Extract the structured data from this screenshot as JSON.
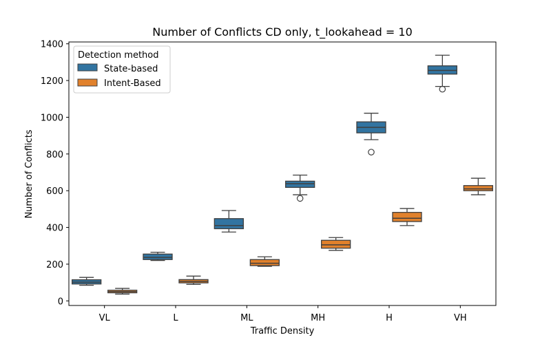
{
  "chart_data": {
    "type": "box",
    "title": "Number of Conflicts CD only, t_lookahead = 10",
    "xlabel": "Traffic Density",
    "ylabel": "Number of Conflicts",
    "categories": [
      "VL",
      "L",
      "ML",
      "MH",
      "H",
      "VH"
    ],
    "ylim": [
      -25,
      1410
    ],
    "yticks": [
      0,
      200,
      400,
      600,
      800,
      1000,
      1200,
      1400
    ],
    "legend": {
      "title": "Detection method",
      "placement": "top-left"
    },
    "series": [
      {
        "name": "State-based",
        "color": "#3274a1",
        "boxes": [
          {
            "whisker_low": 85,
            "q1": 92,
            "median": 102,
            "q3": 115,
            "whisker_high": 128,
            "outliers": []
          },
          {
            "whisker_low": 220,
            "q1": 225,
            "median": 237,
            "q3": 255,
            "whisker_high": 265,
            "outliers": []
          },
          {
            "whisker_low": 375,
            "q1": 393,
            "median": 410,
            "q3": 448,
            "whisker_high": 492,
            "outliers": []
          },
          {
            "whisker_low": 578,
            "q1": 618,
            "median": 638,
            "q3": 652,
            "whisker_high": 685,
            "outliers": [
              558
            ]
          },
          {
            "whisker_low": 878,
            "q1": 915,
            "median": 945,
            "q3": 975,
            "whisker_high": 1022,
            "outliers": [
              810
            ]
          },
          {
            "whisker_low": 1168,
            "q1": 1235,
            "median": 1255,
            "q3": 1280,
            "whisker_high": 1338,
            "outliers": [
              1153
            ]
          }
        ]
      },
      {
        "name": "Intent-Based",
        "color": "#e1812c",
        "boxes": [
          {
            "whisker_low": 37,
            "q1": 44,
            "median": 51,
            "q3": 58,
            "whisker_high": 68,
            "outliers": []
          },
          {
            "whisker_low": 90,
            "q1": 98,
            "median": 106,
            "q3": 116,
            "whisker_high": 135,
            "outliers": []
          },
          {
            "whisker_low": 188,
            "q1": 192,
            "median": 205,
            "q3": 225,
            "whisker_high": 240,
            "outliers": []
          },
          {
            "whisker_low": 275,
            "q1": 287,
            "median": 305,
            "q3": 330,
            "whisker_high": 345,
            "outliers": []
          },
          {
            "whisker_low": 410,
            "q1": 432,
            "median": 450,
            "q3": 482,
            "whisker_high": 503,
            "outliers": []
          },
          {
            "whisker_low": 578,
            "q1": 600,
            "median": 610,
            "q3": 628,
            "whisker_high": 668,
            "outliers": []
          }
        ]
      }
    ]
  }
}
